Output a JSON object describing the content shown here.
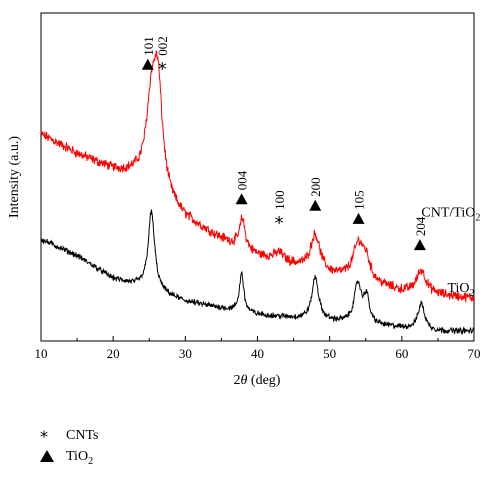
{
  "chart_data": {
    "type": "line",
    "xlabel": "2θ (deg)",
    "ylabel": "Intensity (a.u.)",
    "xlim": [
      10,
      70
    ],
    "x_ticks": [
      10,
      20,
      30,
      40,
      50,
      60,
      70
    ],
    "x_tick_labels": [
      "10",
      "20",
      "30",
      "40",
      "50",
      "60",
      "70"
    ],
    "y_ticks_labeled": false,
    "ylim": [
      0,
      100
    ],
    "grid": false,
    "series": [
      {
        "name": "CNT/TiO2",
        "color": "#ff0000",
        "baseline": [
          [
            10,
            63
          ],
          [
            15,
            57
          ],
          [
            20,
            52
          ],
          [
            23,
            50
          ],
          [
            30,
            37
          ],
          [
            35,
            31
          ],
          [
            40,
            26
          ],
          [
            45,
            23
          ],
          [
            50,
            20
          ],
          [
            55,
            18
          ],
          [
            60,
            15
          ],
          [
            65,
            14
          ],
          [
            70,
            13
          ]
        ],
        "peaks": [
          [
            25.3,
            24,
            0.9
          ],
          [
            26.2,
            30,
            0.75
          ],
          [
            37.9,
            9,
            0.45
          ],
          [
            48.0,
            11,
            0.8
          ],
          [
            54.0,
            11,
            0.9
          ],
          [
            55.1,
            5,
            0.6
          ],
          [
            62.7,
            7,
            0.8
          ],
          [
            43.0,
            2.5,
            0.8
          ]
        ],
        "noise": 1.2
      },
      {
        "name": "TiO2",
        "color": "#000000",
        "baseline": [
          [
            10,
            31
          ],
          [
            15,
            26
          ],
          [
            20,
            19
          ],
          [
            23,
            17
          ],
          [
            30,
            12
          ],
          [
            35,
            10
          ],
          [
            40,
            8
          ],
          [
            45,
            7
          ],
          [
            50,
            6
          ],
          [
            55,
            5
          ],
          [
            60,
            4
          ],
          [
            65,
            3
          ],
          [
            70,
            3
          ]
        ],
        "peaks": [
          [
            25.3,
            24,
            0.55
          ],
          [
            37.8,
            12,
            0.35
          ],
          [
            48.0,
            13,
            0.55
          ],
          [
            53.9,
            12,
            0.6
          ],
          [
            55.1,
            8,
            0.45
          ],
          [
            62.7,
            8,
            0.55
          ]
        ],
        "noise": 0.7
      }
    ],
    "series_labels": [
      {
        "text": "CNT/TiO2",
        "display": "CNT/TiO",
        "sub": "2",
        "x": 66.8,
        "y": 38
      },
      {
        "text": "TiO2",
        "display": "TiO",
        "sub": "2",
        "x": 68.2,
        "y": 15
      }
    ],
    "peak_annotations": [
      {
        "marker": "triangle",
        "label": "101",
        "x": 24.8,
        "y": 83
      },
      {
        "marker": "star",
        "label": "002",
        "x": 26.8,
        "y": 83
      },
      {
        "marker": "triangle",
        "label": "004",
        "x": 37.8,
        "y": 42
      },
      {
        "marker": "star",
        "label": "100",
        "x": 43.0,
        "y": 36
      },
      {
        "marker": "triangle",
        "label": "200",
        "x": 48.0,
        "y": 40
      },
      {
        "marker": "triangle",
        "label": "105",
        "x": 54.0,
        "y": 36
      },
      {
        "marker": "triangle",
        "label": "204",
        "x": 62.5,
        "y": 28
      }
    ],
    "legend": {
      "placement": "bottom-left, below plot",
      "items": [
        {
          "symbol": "star",
          "symbol_char": "*",
          "label": "CNTs"
        },
        {
          "symbol": "triangle",
          "label": "TiO",
          "sub": "2"
        }
      ]
    }
  }
}
